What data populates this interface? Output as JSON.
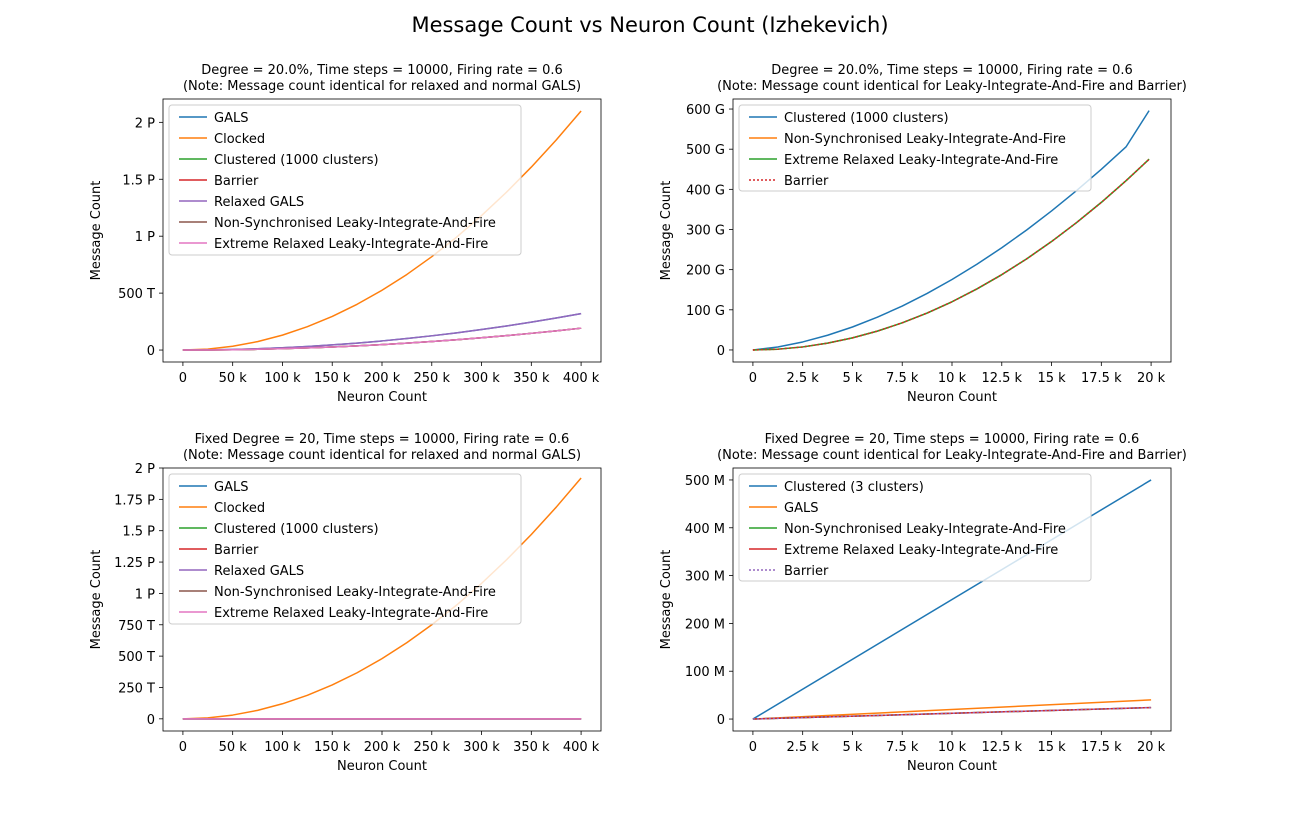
{
  "figure": {
    "title": "Message Count vs Neuron Count (Izhekevich)"
  },
  "colors": {
    "blue": "#1f77b4",
    "orange": "#ff7f0e",
    "green": "#2ca02c",
    "red": "#d62728",
    "purple": "#9467bd",
    "brown": "#8c564b",
    "pink": "#e377c2"
  },
  "chart_data": [
    {
      "type": "line",
      "title": "Degree = 20.0%, Time steps = 10000, Firing rate = 0.6",
      "subtitle": "(Note: Message count identical for relaxed and normal GALS)",
      "xlabel": "Neuron Count",
      "ylabel": "Message Count",
      "xlim": [
        -20000,
        420000
      ],
      "ylim": [
        -105000000000000.0,
        2205000000000000.0
      ],
      "xticks": [
        0,
        50000,
        100000,
        150000,
        200000,
        250000,
        300000,
        350000,
        400000
      ],
      "xtick_labels": [
        "0",
        "50 k",
        "100 k",
        "150 k",
        "200 k",
        "250 k",
        "300 k",
        "350 k",
        "400 k"
      ],
      "yticks": [
        0,
        500000000000000.0,
        1000000000000000.0,
        1500000000000000.0,
        2000000000000000.0
      ],
      "ytick_labels": [
        "0",
        "500 T",
        "1 P",
        "1.5 P",
        "2 P"
      ],
      "grid": false,
      "legend_position": "upper-left",
      "x": [
        0,
        25000,
        50000,
        75000,
        100000,
        125000,
        150000,
        175000,
        200000,
        225000,
        250000,
        275000,
        300000,
        325000,
        350000,
        375000,
        400000
      ],
      "series": [
        {
          "name": "GALS",
          "color": "#1f77b4",
          "dash": "",
          "values": [
            0,
            1300000000000.0,
            5000000000000.0,
            11000000000000.0,
            20000000000000.0,
            31000000000000.0,
            45000000000000.0,
            61000000000000.0,
            80000000000000.0,
            101000000000000.0,
            125000000000000.0,
            151000000000000.0,
            180000000000000.0,
            211000000000000.0,
            245000000000000.0,
            281000000000000.0,
            320000000000000.0
          ]
        },
        {
          "name": "Clocked",
          "color": "#ff7f0e",
          "dash": "",
          "values": [
            0,
            8200000000000.0,
            33000000000000.0,
            74000000000000.0,
            131000000000000.0,
            205000000000000.0,
            295000000000000.0,
            402000000000000.0,
            525000000000000.0,
            664000000000000.0,
            820000000000000.0,
            992000000000000.0,
            1181000000000000.0,
            1386000000000000.0,
            1607000000000000.0,
            1845000000000000.0,
            2100000000000000.0
          ]
        },
        {
          "name": "Clustered (1000 clusters)",
          "color": "#2ca02c",
          "dash": "",
          "values": [
            0,
            740000000000.0,
            3000000000000.0,
            6700000000000.0,
            12000000000000.0,
            18600000000000.0,
            27000000000000.0,
            36600000000000.0,
            48000000000000.0,
            60600000000000.0,
            75000000000000.0,
            90600000000000.0,
            108000000000000.0,
            126600000000000.0,
            147000000000000.0,
            168600000000000.0,
            192000000000000.0
          ]
        },
        {
          "name": "Barrier",
          "color": "#d62728",
          "dash": "",
          "values": [
            0,
            740000000000.0,
            3000000000000.0,
            6700000000000.0,
            12000000000000.0,
            18600000000000.0,
            27000000000000.0,
            36600000000000.0,
            48000000000000.0,
            60600000000000.0,
            75000000000000.0,
            90600000000000.0,
            108000000000000.0,
            126600000000000.0,
            147000000000000.0,
            168600000000000.0,
            192000000000000.0
          ]
        },
        {
          "name": "Relaxed GALS",
          "color": "#9467bd",
          "dash": "",
          "values": [
            0,
            1300000000000.0,
            5000000000000.0,
            11000000000000.0,
            20000000000000.0,
            31000000000000.0,
            45000000000000.0,
            61000000000000.0,
            80000000000000.0,
            101000000000000.0,
            125000000000000.0,
            151000000000000.0,
            180000000000000.0,
            211000000000000.0,
            245000000000000.0,
            281000000000000.0,
            320000000000000.0
          ]
        },
        {
          "name": "Non-Synchronised Leaky-Integrate-And-Fire",
          "color": "#8c564b",
          "dash": "",
          "values": [
            0,
            740000000000.0,
            3000000000000.0,
            6700000000000.0,
            12000000000000.0,
            18600000000000.0,
            27000000000000.0,
            36600000000000.0,
            48000000000000.0,
            60600000000000.0,
            75000000000000.0,
            90600000000000.0,
            108000000000000.0,
            126600000000000.0,
            147000000000000.0,
            168600000000000.0,
            192000000000000.0
          ]
        },
        {
          "name": "Extreme Relaxed Leaky-Integrate-And-Fire",
          "color": "#e377c2",
          "dash": "",
          "values": [
            0,
            740000000000.0,
            3000000000000.0,
            6700000000000.0,
            12000000000000.0,
            18600000000000.0,
            27000000000000.0,
            36600000000000.0,
            48000000000000.0,
            60600000000000.0,
            75000000000000.0,
            90600000000000.0,
            108000000000000.0,
            126600000000000.0,
            147000000000000.0,
            168600000000000.0,
            192000000000000.0
          ]
        }
      ]
    },
    {
      "type": "line",
      "title": "Degree = 20.0%, Time steps = 10000, Firing rate = 0.6",
      "subtitle": "(Note: Message count identical for Leaky-Integrate-And-Fire and Barrier)",
      "xlabel": "Neuron Count",
      "ylabel": "Message Count",
      "xlim": [
        -1000,
        21000
      ],
      "ylim": [
        -30000000000.0,
        625000000000.0
      ],
      "xticks": [
        0,
        2500,
        5000,
        7500,
        10000,
        12500,
        15000,
        17500,
        20000
      ],
      "xtick_labels": [
        "0",
        "2.5 k",
        "5 k",
        "7.5 k",
        "10 k",
        "12.5 k",
        "15 k",
        "17.5 k",
        "20 k"
      ],
      "yticks": [
        0,
        100000000000.0,
        200000000000.0,
        300000000000.0,
        400000000000.0,
        500000000000.0,
        600000000000.0
      ],
      "ytick_labels": [
        "0",
        "100 G",
        "200 G",
        "300 G",
        "400 G",
        "500 G",
        "600 G"
      ],
      "grid": false,
      "legend_position": "upper-left",
      "x": [
        0,
        1250,
        2500,
        3750,
        5000,
        6250,
        7500,
        8750,
        10000,
        11250,
        12500,
        13750,
        15000,
        16250,
        17500,
        18750,
        19900
      ],
      "series": [
        {
          "name": "Clustered (1000 clusters)",
          "color": "#1f77b4",
          "dash": "",
          "values": [
            0,
            7400000000.0,
            19900000000.0,
            36600000000.0,
            57200000000.0,
            81500000000.0,
            109400000000.0,
            140700000000.0,
            175400000000.0,
            213400000000.0,
            254500000000.0,
            298800000000.0,
            346200000000.0,
            396600000000.0,
            450000000000.0,
            506300000000.0,
            596000000000.0
          ]
        },
        {
          "name": "Non-Synchronised Leaky-Integrate-And-Fire",
          "color": "#ff7f0e",
          "dash": "",
          "values": [
            0,
            1900000000.0,
            7500000000.0,
            16900000000.0,
            30000000000.0,
            46900000000.0,
            67500000000.0,
            91900000000.0,
            120000000000.0,
            151900000000.0,
            187500000000.0,
            226900000000.0,
            270000000000.0,
            316900000000.0,
            367500000000.0,
            421900000000.0,
            475000000000.0
          ]
        },
        {
          "name": "Extreme Relaxed Leaky-Integrate-And-Fire",
          "color": "#2ca02c",
          "dash": "",
          "values": [
            0,
            1900000000.0,
            7500000000.0,
            16900000000.0,
            30000000000.0,
            46900000000.0,
            67500000000.0,
            91900000000.0,
            120000000000.0,
            151900000000.0,
            187500000000.0,
            226900000000.0,
            270000000000.0,
            316900000000.0,
            367500000000.0,
            421900000000.0,
            475000000000.0
          ]
        },
        {
          "name": "Barrier",
          "color": "#d62728",
          "dash": "2,2",
          "values": [
            0,
            1900000000.0,
            7500000000.0,
            16900000000.0,
            30000000000.0,
            46900000000.0,
            67500000000.0,
            91900000000.0,
            120000000000.0,
            151900000000.0,
            187500000000.0,
            226900000000.0,
            270000000000.0,
            316900000000.0,
            367500000000.0,
            421900000000.0,
            475000000000.0
          ]
        }
      ]
    },
    {
      "type": "line",
      "title": "Fixed Degree = 20, Time steps = 10000, Firing rate = 0.6",
      "subtitle": "(Note: Message count identical for relaxed and normal GALS)",
      "xlabel": "Neuron Count",
      "ylabel": "Message Count",
      "xlim": [
        -20000,
        420000
      ],
      "ylim": [
        -97000000000000.0,
        2000000000000000.0
      ],
      "xticks": [
        0,
        50000,
        100000,
        150000,
        200000,
        250000,
        300000,
        350000,
        400000
      ],
      "xtick_labels": [
        "0",
        "50 k",
        "100 k",
        "150 k",
        "200 k",
        "250 k",
        "300 k",
        "350 k",
        "400 k"
      ],
      "yticks": [
        0,
        250000000000000.0,
        500000000000000.0,
        750000000000000.0,
        1000000000000000.0,
        1250000000000000.0,
        1500000000000000.0,
        1750000000000000.0,
        2000000000000000.0
      ],
      "ytick_labels": [
        "0",
        "250 T",
        "500 T",
        "750 T",
        "1 P",
        "1.25 P",
        "1.5 P",
        "1.75 P",
        "2 P"
      ],
      "grid": false,
      "legend_position": "upper-left",
      "x": [
        0,
        25000,
        50000,
        75000,
        100000,
        125000,
        150000,
        175000,
        200000,
        225000,
        250000,
        275000,
        300000,
        325000,
        350000,
        375000,
        400000
      ],
      "series": [
        {
          "name": "GALS",
          "color": "#1f77b4",
          "dash": "",
          "values": [
            0,
            500000000.0,
            1000000000.0,
            1500000000.0,
            2000000000.0,
            2500000000.0,
            3000000000.0,
            3500000000.0,
            4000000000.0,
            4500000000.0,
            5000000000.0,
            5500000000.0,
            6000000000.0,
            6500000000.0,
            7000000000.0,
            7500000000.0,
            8000000000.0
          ]
        },
        {
          "name": "Clocked",
          "color": "#ff7f0e",
          "dash": "",
          "values": [
            0,
            7500000000000.0,
            30000000000000.0,
            67500000000000.0,
            120000000000000.0,
            187500000000000.0,
            270000000000000.0,
            367500000000000.0,
            480000000000000.0,
            607500000000000.0,
            750000000000000.0,
            907500000000000.0,
            1080000000000000.0,
            1267500000000000.0,
            1470000000000000.0,
            1687500000000000.0,
            1920000000000000.0
          ]
        },
        {
          "name": "Clustered (1000 clusters)",
          "color": "#2ca02c",
          "dash": "",
          "values": [
            0,
            300000000.0,
            600000000.0,
            900000000.0,
            1200000000.0,
            1500000000.0,
            1800000000.0,
            2100000000.0,
            2400000000.0,
            2700000000.0,
            3000000000.0,
            3300000000.0,
            3600000000.0,
            3900000000.0,
            4200000000.0,
            4500000000.0,
            4800000000.0
          ]
        },
        {
          "name": "Barrier",
          "color": "#d62728",
          "dash": "",
          "values": [
            0,
            300000000.0,
            600000000.0,
            900000000.0,
            1200000000.0,
            1500000000.0,
            1800000000.0,
            2100000000.0,
            2400000000.0,
            2700000000.0,
            3000000000.0,
            3300000000.0,
            3600000000.0,
            3900000000.0,
            4200000000.0,
            4500000000.0,
            4800000000.0
          ]
        },
        {
          "name": "Relaxed GALS",
          "color": "#9467bd",
          "dash": "",
          "values": [
            0,
            500000000.0,
            1000000000.0,
            1500000000.0,
            2000000000.0,
            2500000000.0,
            3000000000.0,
            3500000000.0,
            4000000000.0,
            4500000000.0,
            5000000000.0,
            5500000000.0,
            6000000000.0,
            6500000000.0,
            7000000000.0,
            7500000000.0,
            8000000000.0
          ]
        },
        {
          "name": "Non-Synchronised Leaky-Integrate-And-Fire",
          "color": "#8c564b",
          "dash": "",
          "values": [
            0,
            300000000.0,
            600000000.0,
            900000000.0,
            1200000000.0,
            1500000000.0,
            1800000000.0,
            2100000000.0,
            2400000000.0,
            2700000000.0,
            3000000000.0,
            3300000000.0,
            3600000000.0,
            3900000000.0,
            4200000000.0,
            4500000000.0,
            4800000000.0
          ]
        },
        {
          "name": "Extreme Relaxed Leaky-Integrate-And-Fire",
          "color": "#e377c2",
          "dash": "",
          "values": [
            0,
            300000000.0,
            600000000.0,
            900000000.0,
            1200000000.0,
            1500000000.0,
            1800000000.0,
            2100000000.0,
            2400000000.0,
            2700000000.0,
            3000000000.0,
            3300000000.0,
            3600000000.0,
            3900000000.0,
            4200000000.0,
            4500000000.0,
            4800000000.0
          ]
        }
      ]
    },
    {
      "type": "line",
      "title": "Fixed Degree = 20, Time steps = 10000, Firing rate = 0.6",
      "subtitle": "(Note: Message count identical for Leaky-Integrate-And-Fire and Barrier)",
      "xlabel": "Neuron Count",
      "ylabel": "Message Count",
      "xlim": [
        -1000,
        21000
      ],
      "ylim": [
        -25000000.0,
        525000000.0
      ],
      "xticks": [
        0,
        2500,
        5000,
        7500,
        10000,
        12500,
        15000,
        17500,
        20000
      ],
      "xtick_labels": [
        "0",
        "2.5 k",
        "5 k",
        "7.5 k",
        "10 k",
        "12.5 k",
        "15 k",
        "17.5 k",
        "20 k"
      ],
      "yticks": [
        0,
        100000000.0,
        200000000.0,
        300000000.0,
        400000000.0,
        500000000.0
      ],
      "ytick_labels": [
        "0",
        "100 M",
        "200 M",
        "300 M",
        "400 M",
        "500 M"
      ],
      "grid": false,
      "legend_position": "upper-left",
      "x": [
        0,
        20000
      ],
      "series": [
        {
          "name": "Clustered (3 clusters)",
          "color": "#1f77b4",
          "dash": "",
          "values": [
            0,
            500000000.0
          ]
        },
        {
          "name": "GALS",
          "color": "#ff7f0e",
          "dash": "",
          "values": [
            0,
            40000000.0
          ]
        },
        {
          "name": "Non-Synchronised Leaky-Integrate-And-Fire",
          "color": "#2ca02c",
          "dash": "",
          "values": [
            0,
            24000000.0
          ]
        },
        {
          "name": "Extreme Relaxed Leaky-Integrate-And-Fire",
          "color": "#d62728",
          "dash": "",
          "values": [
            0,
            24000000.0
          ]
        },
        {
          "name": "Barrier",
          "color": "#9467bd",
          "dash": "2,2",
          "values": [
            0,
            24000000.0
          ]
        }
      ]
    }
  ]
}
